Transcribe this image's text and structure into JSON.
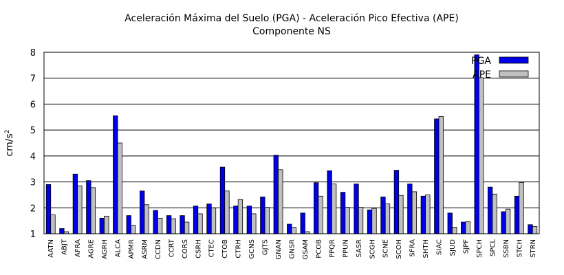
{
  "chart_data": {
    "type": "bar",
    "title": "Aceleración Máxima del Suelo (PGA) -  Aceleración Pico Efectiva (APE)",
    "subtitle": "Componente NS",
    "ylabel": "cm/s",
    "ylabel_sup": "2",
    "ylim": [
      1,
      8
    ],
    "yticks": [
      "1",
      "2",
      "3",
      "4",
      "5",
      "6",
      "7",
      "8"
    ],
    "grid": "horizontal",
    "legend_position": "top-right",
    "categories": [
      "AATN",
      "ABJT",
      "AFRA",
      "AGRE",
      "AGRH",
      "ALCA",
      "APMR",
      "ASRM",
      "CCDN",
      "CCRT",
      "CORS",
      "CSRH",
      "CTEC",
      "CTOB",
      "CTRH",
      "GCNS",
      "GJTS",
      "GNAN",
      "GNSR",
      "GSAM",
      "PCOB",
      "PPQR",
      "PPUN",
      "SASR",
      "SCGH",
      "SCNE",
      "SCOH",
      "SFRA",
      "SHTH",
      "SIAC",
      "SJUD",
      "SJPF",
      "SPCH",
      "SPCL",
      "SSBN",
      "STCH",
      "STRN"
    ],
    "series": [
      {
        "name": "PGA",
        "color": "#0000e6",
        "values": [
          2.9,
          1.2,
          3.3,
          3.05,
          1.6,
          5.55,
          1.7,
          2.65,
          1.9,
          1.7,
          1.7,
          2.07,
          2.15,
          3.57,
          2.07,
          2.07,
          2.42,
          4.03,
          1.37,
          1.8,
          2.97,
          3.43,
          2.6,
          2.92,
          1.92,
          2.42,
          3.45,
          2.92,
          2.45,
          5.43,
          1.8,
          1.45,
          7.9,
          2.8,
          1.85,
          2.45,
          1.35
        ]
      },
      {
        "name": "APE",
        "color": "#c0c0c0",
        "values": [
          1.73,
          1.08,
          2.85,
          2.78,
          1.68,
          4.5,
          1.33,
          2.12,
          1.6,
          1.58,
          1.45,
          1.77,
          2.0,
          2.65,
          2.32,
          1.77,
          2.02,
          3.47,
          1.25,
          1.08,
          2.45,
          2.92,
          2.02,
          2.02,
          1.98,
          2.15,
          2.48,
          2.62,
          2.5,
          5.52,
          1.25,
          1.47,
          7.02,
          2.53,
          1.95,
          2.98,
          1.28
        ]
      }
    ]
  }
}
